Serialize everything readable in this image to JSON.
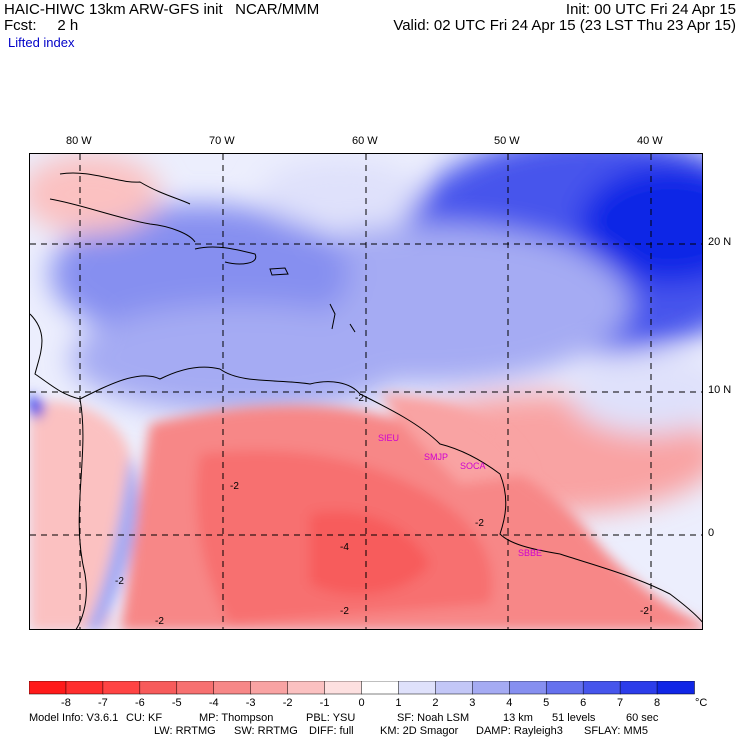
{
  "header": {
    "title_left": "HAIC-HIWC 13km ARW-GFS init   NCAR/MMM",
    "fcst": "Fcst:     2 h",
    "init": "Init: 00 UTC Fri 24 Apr 15",
    "valid": "Valid: 02 UTC Fri 24 Apr 15 (23 LST Thu 23 Apr 15)",
    "field": "Lifted index"
  },
  "axes": {
    "lon_labels": [
      "80 W",
      "70 W",
      "60 W",
      "50 W",
      "40 W"
    ],
    "lat_labels": [
      "20 N",
      "10 N",
      "0"
    ]
  },
  "stations": [
    "SIEU",
    "SMJP",
    "SOCA",
    "SBBE"
  ],
  "contour_labels": [
    "-2",
    "-2",
    "-4",
    "-2",
    "-2",
    "-2",
    "-2",
    "-2"
  ],
  "colorbar": {
    "ticks": [
      "-8",
      "-7",
      "-6",
      "-5",
      "-4",
      "-3",
      "-2",
      "-1",
      "0",
      "1",
      "2",
      "3",
      "4",
      "5",
      "6",
      "7",
      "8"
    ],
    "unit": "°C",
    "colors": [
      "#ff1a1a",
      "#ff2e2e",
      "#ff4444",
      "#f75b5b",
      "#f77070",
      "#f78787",
      "#f9a3a3",
      "#fbc1c1",
      "#fde0e0",
      "#ffffff",
      "#dfe1fb",
      "#c3c7f7",
      "#a5abf3",
      "#868ff0",
      "#6571ee",
      "#4655ec",
      "#2c3dea",
      "#1026e6"
    ]
  },
  "footer": {
    "line1": [
      "Model Info: V3.6.1",
      "CU: KF",
      "MP: Thompson",
      "PBL: YSU",
      "SF: Noah LSM",
      "13 km",
      "51 levels",
      "60 sec"
    ],
    "line2": [
      "LW: RRTMG",
      "SW: RRTMG",
      "DIFF: full",
      "KM: 2D Smagor",
      "DAMP: Rayleigh3",
      "SFLAY: MM5"
    ]
  }
}
